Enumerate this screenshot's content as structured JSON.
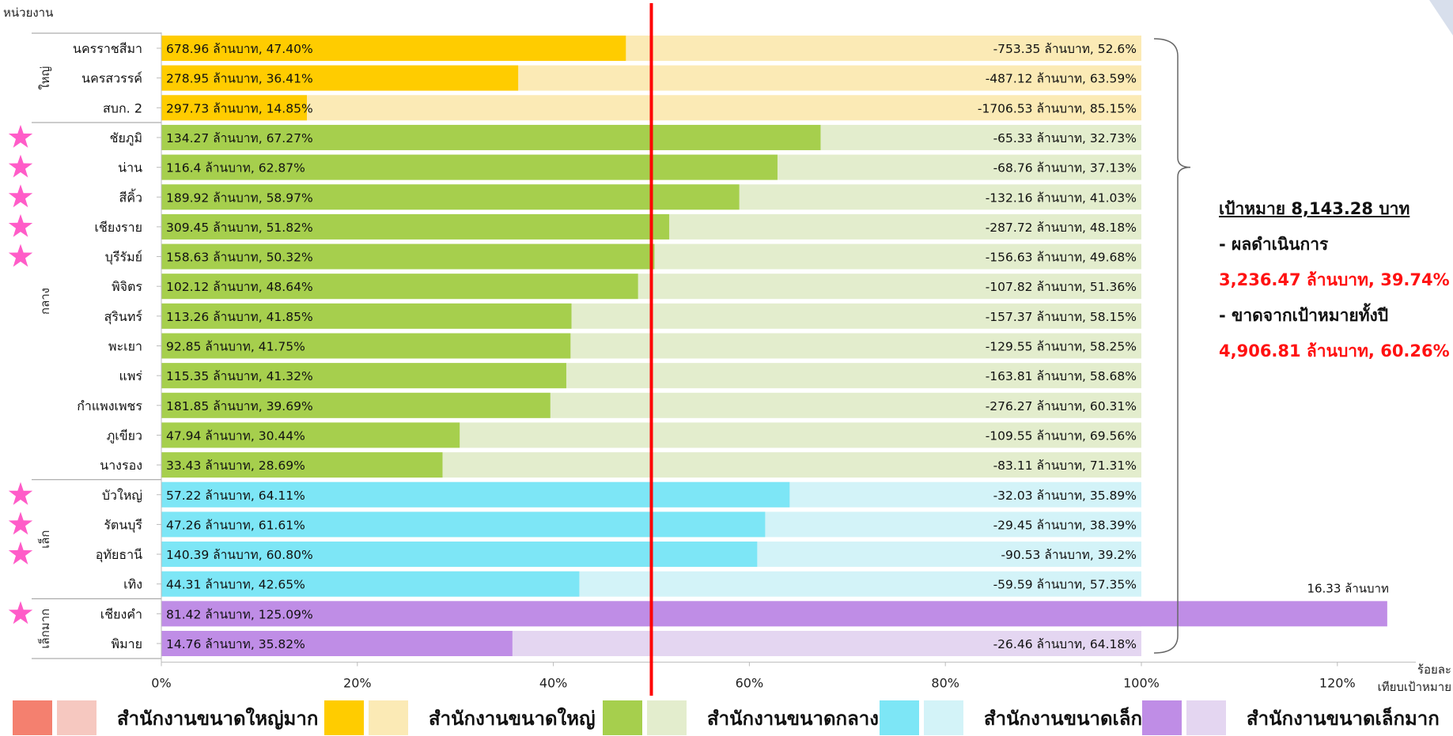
{
  "chart_data": {
    "type": "bar",
    "orientation": "horizontal",
    "stacked": true,
    "ylabel": "หน่วยงาน",
    "xlabel": "ร้อยละ เทียบเป้าหมาย",
    "xunit_line1": "ร้อยละ",
    "xunit_line2": "เทียบเป้าหมาย",
    "xlim": [
      0,
      130
    ],
    "xticks": [
      "0%",
      "20%",
      "40%",
      "60%",
      "80%",
      "100%",
      "120%"
    ],
    "reference_line": 50,
    "groups": [
      {
        "label": "ใหญ่",
        "key": "large"
      },
      {
        "label": "กลาง",
        "key": "medium"
      },
      {
        "label": "เล็ก",
        "key": "small"
      },
      {
        "label": "เล็กมาก",
        "key": "xsmall"
      }
    ],
    "rows": [
      {
        "name": "นครราชสีมา",
        "group": "large",
        "star": false,
        "pct": 47.4,
        "achieved_label": "678.96 ล้านบาท, 47.40%",
        "remaining_label": "-753.35 ล้านบาท, 52.6%"
      },
      {
        "name": "นครสวรรค์",
        "group": "large",
        "star": false,
        "pct": 36.41,
        "achieved_label": "278.95 ล้านบาท, 36.41%",
        "remaining_label": "-487.12 ล้านบาท, 63.59%"
      },
      {
        "name": "สบก. 2",
        "group": "large",
        "star": false,
        "pct": 14.85,
        "achieved_label": "297.73 ล้านบาท, 14.85%",
        "remaining_label": "-1706.53 ล้านบาท, 85.15%"
      },
      {
        "name": "ชัยภูมิ",
        "group": "medium",
        "star": true,
        "pct": 67.27,
        "achieved_label": "134.27 ล้านบาท, 67.27%",
        "remaining_label": "-65.33 ล้านบาท, 32.73%"
      },
      {
        "name": "น่าน",
        "group": "medium",
        "star": true,
        "pct": 62.87,
        "achieved_label": "116.4 ล้านบาท, 62.87%",
        "remaining_label": "-68.76 ล้านบาท, 37.13%"
      },
      {
        "name": "สีคิ้ว",
        "group": "medium",
        "star": true,
        "pct": 58.97,
        "achieved_label": "189.92 ล้านบาท, 58.97%",
        "remaining_label": "-132.16 ล้านบาท, 41.03%"
      },
      {
        "name": "เชียงราย",
        "group": "medium",
        "star": true,
        "pct": 51.82,
        "achieved_label": "309.45 ล้านบาท, 51.82%",
        "remaining_label": "-287.72 ล้านบาท, 48.18%"
      },
      {
        "name": "บุรีรัมย์",
        "group": "medium",
        "star": true,
        "pct": 50.32,
        "achieved_label": "158.63 ล้านบาท, 50.32%",
        "remaining_label": "-156.63 ล้านบาท, 49.68%"
      },
      {
        "name": "พิจิตร",
        "group": "medium",
        "star": false,
        "pct": 48.64,
        "achieved_label": "102.12 ล้านบาท, 48.64%",
        "remaining_label": "-107.82 ล้านบาท, 51.36%"
      },
      {
        "name": "สุรินทร์",
        "group": "medium",
        "star": false,
        "pct": 41.85,
        "achieved_label": "113.26 ล้านบาท, 41.85%",
        "remaining_label": "-157.37 ล้านบาท, 58.15%"
      },
      {
        "name": "พะเยา",
        "group": "medium",
        "star": false,
        "pct": 41.75,
        "achieved_label": "92.85 ล้านบาท, 41.75%",
        "remaining_label": "-129.55 ล้านบาท, 58.25%"
      },
      {
        "name": "แพร่",
        "group": "medium",
        "star": false,
        "pct": 41.32,
        "achieved_label": "115.35 ล้านบาท, 41.32%",
        "remaining_label": "-163.81 ล้านบาท, 58.68%"
      },
      {
        "name": "กำแพงเพชร",
        "group": "medium",
        "star": false,
        "pct": 39.69,
        "achieved_label": "181.85 ล้านบาท, 39.69%",
        "remaining_label": "-276.27 ล้านบาท, 60.31%"
      },
      {
        "name": "ภูเขียว",
        "group": "medium",
        "star": false,
        "pct": 30.44,
        "achieved_label": "47.94 ล้านบาท, 30.44%",
        "remaining_label": "-109.55 ล้านบาท, 69.56%"
      },
      {
        "name": "นางรอง",
        "group": "medium",
        "star": false,
        "pct": 28.69,
        "achieved_label": "33.43 ล้านบาท, 28.69%",
        "remaining_label": "-83.11 ล้านบาท, 71.31%"
      },
      {
        "name": "บัวใหญ่",
        "group": "small",
        "star": true,
        "pct": 64.11,
        "achieved_label": "57.22 ล้านบาท, 64.11%",
        "remaining_label": "-32.03 ล้านบาท, 35.89%"
      },
      {
        "name": "รัตนบุรี",
        "group": "small",
        "star": true,
        "pct": 61.61,
        "achieved_label": "47.26 ล้านบาท, 61.61%",
        "remaining_label": "-29.45 ล้านบาท, 38.39%"
      },
      {
        "name": "อุทัยธานี",
        "group": "small",
        "star": true,
        "pct": 60.8,
        "achieved_label": "140.39 ล้านบาท, 60.80%",
        "remaining_label": "-90.53 ล้านบาท, 39.2%"
      },
      {
        "name": "เทิง",
        "group": "small",
        "star": false,
        "pct": 42.65,
        "achieved_label": "44.31 ล้านบาท, 42.65%",
        "remaining_label": "-59.59 ล้านบาท, 57.35%"
      },
      {
        "name": "เชียงคำ",
        "group": "xsmall",
        "star": true,
        "pct": 125.09,
        "achieved_label": "81.42 ล้านบาท, 125.09%",
        "remaining_label": "",
        "excess_label": "16.33 ล้านบาท"
      },
      {
        "name": "พิมาย",
        "group": "xsmall",
        "star": false,
        "pct": 35.82,
        "achieved_label": "14.76 ล้านบาท, 35.82%",
        "remaining_label": "-26.46 ล้านบาท, 64.18%"
      }
    ],
    "legend": [
      {
        "label": "สำนักงานขนาดใหญ่มาก",
        "dark": "#f4806f",
        "light": "#f6c8c0"
      },
      {
        "label": "สำนักงานขนาดใหญ่",
        "dark": "#ffcc00",
        "light": "#fbeab5"
      },
      {
        "label": "สำนักงานขนาดกลาง",
        "dark": "#a6cf4d",
        "light": "#e3edcd"
      },
      {
        "label": "สำนักงานขนาดเล็ก",
        "dark": "#7de6f6",
        "light": "#d3f3f8"
      },
      {
        "label": "สำนักงานขนาดเล็กมาก",
        "dark": "#bf8de6",
        "light": "#e4d6f1"
      }
    ],
    "colors": {
      "large": {
        "dark": "#ffcc00",
        "light": "#fbeab5"
      },
      "medium": {
        "dark": "#a6cf4d",
        "light": "#e3edcd"
      },
      "small": {
        "dark": "#7de6f6",
        "light": "#d3f3f8"
      },
      "xsmall": {
        "dark": "#bf8de6",
        "light": "#e4d6f1"
      },
      "reference": "#ff0000",
      "star": "#ff5cc8"
    }
  },
  "summary": {
    "target_label": "เป้าหมาย 8,143.28 บาท",
    "result_heading": "- ผลดำเนินการ",
    "result_value": "3,236.47 ล้านบาท, 39.74%",
    "gap_heading": "- ขาดจากเป้าหมายทั้งปี",
    "gap_value": "4,906.81 ล้านบาท, 60.26%"
  }
}
